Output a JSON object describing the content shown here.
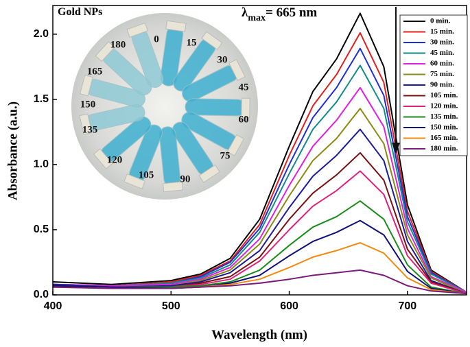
{
  "chart_data": {
    "type": "line",
    "x_label": "Wavelength (nm)",
    "y_label": "Absorbance (a.u.)",
    "annotation": {
      "symbol": "λ",
      "subscript": "max",
      "text": "= 665 nm"
    },
    "inset": {
      "title": "Gold NPs",
      "labels": [
        "0",
        "15",
        "30",
        "45",
        "60",
        "75",
        "90",
        "105",
        "120",
        "135",
        "150",
        "165",
        "180"
      ]
    },
    "xlim": [
      400,
      750
    ],
    "ylim": [
      0,
      2.22
    ],
    "xticks": [
      400,
      500,
      600,
      700
    ],
    "yticks": [
      {
        "value": 0,
        "label": "0.0"
      },
      0.5,
      {
        "value": 1,
        "label": "1.0"
      },
      1.5,
      {
        "value": 2,
        "label": "2.0"
      }
    ],
    "x": [
      400,
      450,
      500,
      525,
      550,
      575,
      600,
      620,
      640,
      660,
      680,
      700,
      720,
      750
    ],
    "series": [
      {
        "name": "0 min.",
        "color": "#000000",
        "values": [
          0.1,
          0.08,
          0.11,
          0.16,
          0.28,
          0.58,
          1.14,
          1.56,
          1.81,
          2.16,
          1.75,
          0.69,
          0.19,
          0.02
        ]
      },
      {
        "name": "15 min.",
        "color": "#e0201c",
        "values": [
          0.08,
          0.07,
          0.1,
          0.15,
          0.26,
          0.54,
          1.07,
          1.45,
          1.69,
          2.01,
          1.63,
          0.64,
          0.18,
          0.02
        ]
      },
      {
        "name": "30 min.",
        "color": "#1f2fd6",
        "values": [
          0.08,
          0.07,
          0.09,
          0.14,
          0.25,
          0.51,
          1.0,
          1.36,
          1.59,
          1.89,
          1.53,
          0.6,
          0.17,
          0.02
        ]
      },
      {
        "name": "45 min.",
        "color": "#138a8a",
        "values": [
          0.08,
          0.07,
          0.09,
          0.13,
          0.23,
          0.48,
          0.93,
          1.27,
          1.48,
          1.76,
          1.43,
          0.56,
          0.16,
          0.02
        ]
      },
      {
        "name": "60 min.",
        "color": "#e020e0",
        "values": [
          0.08,
          0.07,
          0.08,
          0.12,
          0.21,
          0.43,
          0.84,
          1.14,
          1.34,
          1.59,
          1.29,
          0.51,
          0.14,
          0.02
        ]
      },
      {
        "name": "75 min.",
        "color": "#8a8a10",
        "values": [
          0.08,
          0.06,
          0.07,
          0.11,
          0.19,
          0.39,
          0.76,
          1.03,
          1.2,
          1.43,
          1.16,
          0.46,
          0.13,
          0.01
        ]
      },
      {
        "name": "90 min.",
        "color": "#1a1a9a",
        "values": [
          0.08,
          0.06,
          0.07,
          0.1,
          0.17,
          0.34,
          0.67,
          0.91,
          1.07,
          1.27,
          1.03,
          0.41,
          0.11,
          0.01
        ]
      },
      {
        "name": "105 min.",
        "color": "#7a1010",
        "values": [
          0.07,
          0.06,
          0.06,
          0.09,
          0.14,
          0.29,
          0.58,
          0.78,
          0.92,
          1.09,
          0.88,
          0.35,
          0.1,
          0.01
        ]
      },
      {
        "name": "120 min.",
        "color": "#e0207a",
        "values": [
          0.07,
          0.06,
          0.06,
          0.08,
          0.12,
          0.26,
          0.5,
          0.68,
          0.8,
          0.95,
          0.77,
          0.3,
          0.09,
          0.01
        ]
      },
      {
        "name": "135 min.",
        "color": "#1a8a1a",
        "values": [
          0.07,
          0.06,
          0.06,
          0.07,
          0.1,
          0.19,
          0.38,
          0.52,
          0.6,
          0.72,
          0.58,
          0.23,
          0.06,
          0.01
        ]
      },
      {
        "name": "150 min.",
        "color": "#10107a",
        "values": [
          0.07,
          0.06,
          0.05,
          0.06,
          0.09,
          0.15,
          0.3,
          0.41,
          0.48,
          0.57,
          0.46,
          0.18,
          0.05,
          0.01
        ]
      },
      {
        "name": "165 min.",
        "color": "#f08a10",
        "values": [
          0.06,
          0.05,
          0.05,
          0.06,
          0.08,
          0.12,
          0.21,
          0.29,
          0.34,
          0.4,
          0.32,
          0.13,
          0.04,
          0.01
        ]
      },
      {
        "name": "180 min.",
        "color": "#7a1a7a",
        "values": [
          0.06,
          0.05,
          0.05,
          0.06,
          0.07,
          0.09,
          0.12,
          0.15,
          0.17,
          0.19,
          0.15,
          0.07,
          0.03,
          0.01
        ]
      }
    ]
  }
}
